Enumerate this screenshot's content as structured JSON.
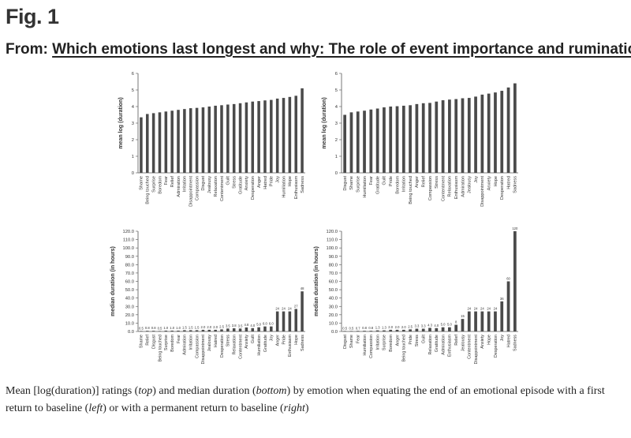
{
  "figure": {
    "label": "Fig. 1",
    "from_prefix": "From:",
    "article_title": "Which emotions last longest and why: The role of event importance and rumination"
  },
  "caption": {
    "t1": "Mean [log(duration)] ratings (",
    "t2": "top",
    "t3": ") and median duration (",
    "t4": "bottom",
    "t5": ") by emotion when equating the end of an emotional episode with a first return to baseline (",
    "t6": "left",
    "t7": ") or with a permanent return to baseline (",
    "t8": "right",
    "t9": ")"
  },
  "chart_data": [
    {
      "id": "top-left",
      "type": "bar",
      "ylabel": "mean log (duration)",
      "ylim": [
        0,
        6
      ],
      "yticks": [
        "0",
        "1",
        "2",
        "3",
        "4",
        "5",
        "6"
      ],
      "show_values": false,
      "categories": [
        "Shame",
        "Being touched",
        "Surprise",
        "Boredom",
        "Fear",
        "Relief",
        "Admiration",
        "Irritation",
        "Disappointment",
        "Compassion",
        "Disgust",
        "Jealousy",
        "Relaxation",
        "Contentment",
        "Guilt",
        "Stress",
        "Gratitude",
        "Anxiety",
        "Desperation",
        "Anger",
        "Hatred",
        "Pride",
        "Joy",
        "Humiliation",
        "Hope",
        "Enthusiasm",
        "Sadness"
      ],
      "values": [
        3.35,
        3.55,
        3.6,
        3.65,
        3.7,
        3.75,
        3.8,
        3.85,
        3.9,
        3.92,
        3.95,
        4.0,
        4.05,
        4.08,
        4.12,
        4.15,
        4.2,
        4.25,
        4.3,
        4.33,
        4.37,
        4.4,
        4.48,
        4.52,
        4.58,
        4.65,
        5.1
      ]
    },
    {
      "id": "top-right",
      "type": "bar",
      "ylabel": "mean log (duration)",
      "ylim": [
        0,
        6
      ],
      "yticks": [
        "0",
        "1",
        "2",
        "3",
        "4",
        "5",
        "6"
      ],
      "show_values": false,
      "categories": [
        "Disgust",
        "Shame",
        "Surprise",
        "Humiliation",
        "Fear",
        "Gratitude",
        "Guilt",
        "Pride",
        "Boredom",
        "Irritation",
        "Being touched",
        "Anger",
        "Relief",
        "Compassion",
        "Stress",
        "Contentment",
        "Relaxation",
        "Enthusiasm",
        "Admiration",
        "Jealousy",
        "Joy",
        "Disappointment",
        "Anxiety",
        "Hope",
        "Desperation",
        "Hatred",
        "Sadness"
      ],
      "values": [
        3.5,
        3.65,
        3.7,
        3.75,
        3.82,
        3.88,
        3.95,
        4.0,
        4.02,
        4.05,
        4.08,
        4.15,
        4.2,
        4.22,
        4.3,
        4.38,
        4.42,
        4.45,
        4.5,
        4.52,
        4.6,
        4.72,
        4.78,
        4.85,
        4.95,
        5.15,
        5.4
      ]
    },
    {
      "id": "bottom-left",
      "type": "bar",
      "ylabel": "median duration (in hours)",
      "ylim": [
        0,
        120
      ],
      "yticks": [
        "0.0",
        "10.0",
        "20.0",
        "30.0",
        "40.0",
        "50.0",
        "60.0",
        "70.0",
        "80.0",
        "90.0",
        "100.0",
        "110.0",
        "120.0"
      ],
      "show_values": true,
      "categories": [
        "Shame",
        "Relief",
        "Disgust",
        "Being touched",
        "Surprise",
        "Boredom",
        "Fear",
        "Admiration",
        "Irritation",
        "Compassion",
        "Disappointment",
        "Jealousy",
        "Hatred",
        "Desperation",
        "Stress",
        "Relaxation",
        "Contentment",
        "Anxiety",
        "Guilt",
        "Humiliation",
        "Gratitude",
        "Joy",
        "Anger",
        "Pride",
        "Enthusiasm",
        "Hope",
        "Sadness"
      ],
      "values": [
        0.5,
        0.8,
        0.8,
        0.5,
        1.0,
        1.0,
        1.0,
        1.5,
        1.5,
        1.5,
        2.0,
        2.0,
        2.0,
        2.5,
        3.5,
        3.8,
        3.5,
        4.8,
        4.0,
        5.0,
        6.0,
        6.0,
        24,
        24,
        24,
        27,
        48
      ],
      "value_labels": [
        "0.5",
        "0.8",
        "0.8",
        "0.5",
        "1.0",
        "1.0",
        "1.0",
        "1.5",
        "1.5",
        "1.5",
        "2.0",
        "2.0",
        "2.0",
        "2.5",
        "3.5",
        "3.8",
        "3.5",
        "4.8",
        "4.0",
        "5.0",
        "6.0",
        "6.0",
        "24",
        "24",
        "24",
        "27",
        "48"
      ]
    },
    {
      "id": "bottom-right",
      "type": "bar",
      "ylabel": "median duration (in hours)",
      "ylim": [
        0,
        120
      ],
      "yticks": [
        "0.0",
        "10.0",
        "20.0",
        "30.0",
        "40.0",
        "50.0",
        "60.0",
        "70.0",
        "80.0",
        "90.0",
        "100.0",
        "110.0",
        "120.0"
      ],
      "show_values": true,
      "categories": [
        "Disgust",
        "Shame",
        "Fear",
        "Humiliation",
        "Compassion",
        "Irritation",
        "Surprise",
        "Boredom",
        "Anger",
        "Being touched",
        "Pride",
        "Stress",
        "Guilt",
        "Relaxation",
        "Gratitude",
        "Admiration",
        "Enthusiasm",
        "Relief",
        "Jealousy",
        "Contentment",
        "Disappointment",
        "Anxiety",
        "Hope",
        "Desperation",
        "Joy",
        "Hatred",
        "Sadness"
      ],
      "values": [
        0.5,
        0.5,
        0.7,
        0.8,
        0.8,
        1.3,
        1.3,
        2.0,
        2.0,
        2.0,
        2.5,
        3.3,
        3.3,
        4.3,
        4.0,
        5.0,
        5.0,
        8,
        15,
        24,
        24,
        24,
        24,
        24,
        36,
        60,
        120
      ],
      "value_labels": [
        "0.5",
        "0.5",
        "0.7",
        "0.8",
        "0.8",
        "1.3",
        "1.3",
        "2.0",
        "2.0",
        "2.0",
        "2.5",
        "3.3",
        "3.3",
        "4.3",
        "4.0",
        "5.0",
        "5.0",
        "8",
        "15",
        "24",
        "24",
        "24",
        "24",
        "24",
        "36",
        "60",
        "120"
      ]
    }
  ]
}
